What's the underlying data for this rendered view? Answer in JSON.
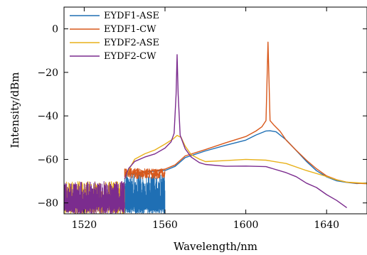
{
  "chart_data": {
    "type": "line",
    "title": "",
    "xlabel": "Wavelength/nm",
    "ylabel": "Intensity/dBm",
    "xlim": [
      1510,
      1660
    ],
    "ylim": [
      -85,
      10
    ],
    "xticks": [
      1520,
      1560,
      1600,
      1640
    ],
    "yticks": [
      0,
      -20,
      -40,
      -60,
      -80
    ],
    "xtick_labels": [
      "1520",
      "1560",
      "1600",
      "1640"
    ],
    "ytick_labels": [
      "0",
      "−20",
      "−40",
      "−60",
      "−80"
    ],
    "grid": false,
    "legend_position": "top-left",
    "series": [
      {
        "name": "EYDF1-ASE",
        "color": "#1f6fb4",
        "noise_floor": {
          "from": 1540,
          "to": 1560,
          "low": -85,
          "high": -66
        },
        "x": [
          1540,
          1545,
          1550,
          1555,
          1560,
          1565,
          1570,
          1580,
          1590,
          1600,
          1605,
          1610,
          1612,
          1615,
          1620,
          1625,
          1630,
          1635,
          1640,
          1645,
          1650,
          1655,
          1660
        ],
        "y": [
          -67,
          -66.5,
          -66,
          -65.5,
          -65,
          -63,
          -59,
          -56,
          -53.5,
          -51,
          -49,
          -47,
          -46.8,
          -47.5,
          -51,
          -56,
          -61,
          -65,
          -68,
          -70,
          -70.5,
          -71,
          -71
        ]
      },
      {
        "name": "EYDF1-CW",
        "color": "#d8581b",
        "noise_floor": {
          "from": 1540,
          "to": 1560,
          "low": -69,
          "high": -64
        },
        "x": [
          1540,
          1545,
          1550,
          1555,
          1560,
          1565,
          1570,
          1580,
          1590,
          1600,
          1605,
          1608,
          1610,
          1611,
          1612,
          1614,
          1617,
          1620,
          1625,
          1630,
          1635,
          1640,
          1645,
          1650,
          1655,
          1660
        ],
        "y": [
          -66.5,
          -66,
          -65.5,
          -65,
          -64.5,
          -62.5,
          -58.5,
          -55.5,
          -52.5,
          -49.5,
          -47,
          -45,
          -42,
          -6,
          -42,
          -44.5,
          -47,
          -51,
          -56,
          -60.5,
          -64.5,
          -67.5,
          -69.5,
          -70.5,
          -71,
          -71
        ]
      },
      {
        "name": "EYDF2-ASE",
        "color": "#e8b11a",
        "noise_floor": {
          "from": 1510,
          "to": 1540,
          "low": -85,
          "high": -70
        },
        "x": [
          1540,
          1542,
          1545,
          1550,
          1555,
          1560,
          1564,
          1566,
          1568,
          1570,
          1573,
          1577,
          1580,
          1590,
          1600,
          1610,
          1620,
          1630,
          1640,
          1645,
          1650,
          1660
        ],
        "y": [
          -69,
          -65,
          -60,
          -57.5,
          -55.5,
          -53,
          -50.5,
          -49,
          -50,
          -54,
          -58,
          -60,
          -61,
          -60.5,
          -60,
          -60.3,
          -62,
          -65,
          -68,
          -69.5,
          -70.5,
          -71
        ]
      },
      {
        "name": "EYDF2-CW",
        "color": "#7b2c8e",
        "noise_floor": {
          "from": 1510,
          "to": 1540,
          "low": -85,
          "high": -70
        },
        "x": [
          1540,
          1542,
          1545,
          1550,
          1555,
          1560,
          1563,
          1564.5,
          1565.5,
          1566,
          1566.5,
          1567.5,
          1570,
          1573,
          1577,
          1580,
          1590,
          1600,
          1610,
          1620,
          1625,
          1630,
          1635,
          1640,
          1645,
          1650
        ],
        "y": [
          -69,
          -64,
          -61,
          -59,
          -57.5,
          -55,
          -52,
          -48,
          -30,
          -12,
          -30,
          -49,
          -55,
          -59,
          -61.5,
          -62.5,
          -63,
          -63,
          -63.5,
          -66,
          -68,
          -71,
          -73,
          -76,
          -79,
          -82
        ]
      }
    ]
  }
}
